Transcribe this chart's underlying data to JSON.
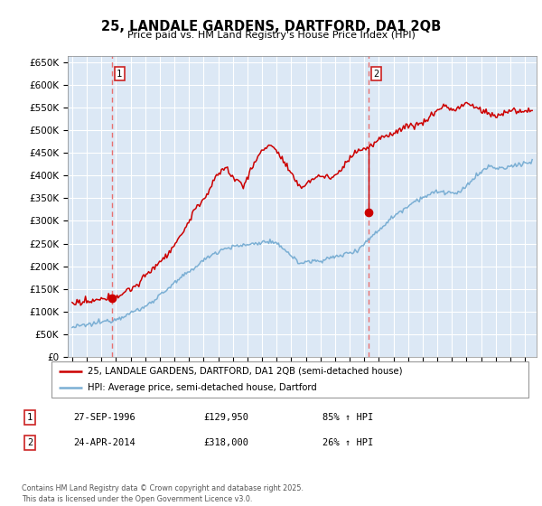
{
  "title1": "25, LANDALE GARDENS, DARTFORD, DA1 2QB",
  "title2": "Price paid vs. HM Land Registry's House Price Index (HPI)",
  "ylabel_ticks": [
    "£0",
    "£50K",
    "£100K",
    "£150K",
    "£200K",
    "£250K",
    "£300K",
    "£350K",
    "£400K",
    "£450K",
    "£500K",
    "£550K",
    "£600K",
    "£650K"
  ],
  "ytick_values": [
    0,
    50000,
    100000,
    150000,
    200000,
    250000,
    300000,
    350000,
    400000,
    450000,
    500000,
    550000,
    600000,
    650000
  ],
  "xlim_start": 1993.7,
  "xlim_end": 2025.8,
  "ylim_min": 0,
  "ylim_max": 665000,
  "sale1_year": 1996.75,
  "sale1_price": 129950,
  "sale2_year": 2014.32,
  "sale2_price": 318000,
  "legend_line1": "25, LANDALE GARDENS, DARTFORD, DA1 2QB (semi-detached house)",
  "legend_line2": "HPI: Average price, semi-detached house, Dartford",
  "table_row1": [
    "1",
    "27-SEP-1996",
    "£129,950",
    "85% ↑ HPI"
  ],
  "table_row2": [
    "2",
    "24-APR-2014",
    "£318,000",
    "26% ↑ HPI"
  ],
  "footer": "Contains HM Land Registry data © Crown copyright and database right 2025.\nThis data is licensed under the Open Government Licence v3.0.",
  "line_red": "#cc0000",
  "line_blue": "#7bafd4",
  "bg_color": "#dce8f5",
  "grid_color": "#ffffff",
  "vline_color": "#e87070"
}
